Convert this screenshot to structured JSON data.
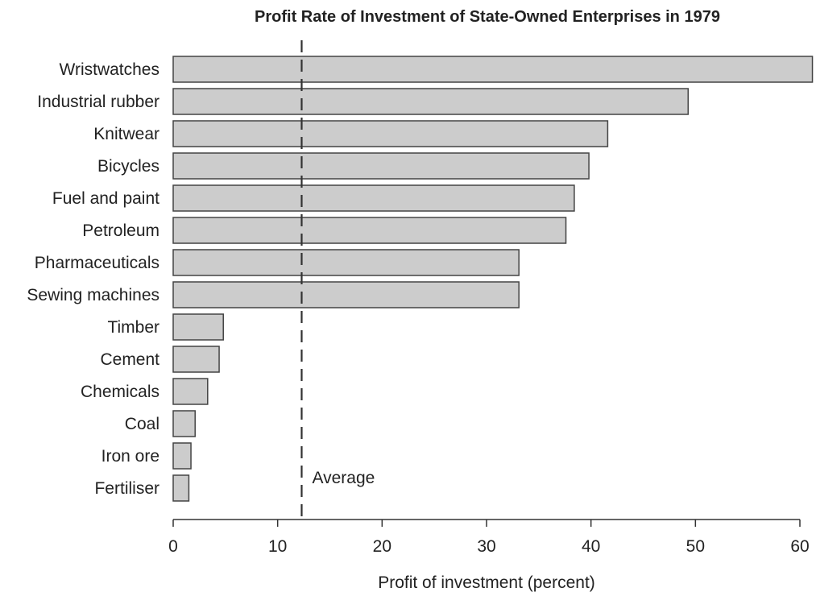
{
  "chart_data": {
    "type": "bar",
    "orientation": "horizontal",
    "title": "Profit Rate of Investment of State-Owned Enterprises in 1979",
    "xlabel": "Profit of investment (percent)",
    "ylabel": "",
    "xlim": [
      0,
      60
    ],
    "x_ticks": [
      "0",
      "10",
      "20",
      "30",
      "40",
      "50",
      "60"
    ],
    "grid": false,
    "categories": [
      "Wristwatches",
      "Industrial rubber",
      "Knitwear",
      "Bicycles",
      "Fuel and paint",
      "Petroleum",
      "Pharmaceuticals",
      "Sewing machines",
      "Timber",
      "Cement",
      "Chemicals",
      "Coal",
      "Iron ore",
      "Fertiliser"
    ],
    "values": [
      61.2,
      49.3,
      41.6,
      39.8,
      38.4,
      37.6,
      33.1,
      33.1,
      4.8,
      4.4,
      3.3,
      2.1,
      1.7,
      1.5
    ],
    "reference_line": {
      "label": "Average",
      "value": 12.3,
      "style": "dashed"
    },
    "colors": {
      "bar_fill": "#cccccc",
      "bar_stroke": "#444444",
      "axis": "#333333",
      "text": "#222222"
    }
  }
}
